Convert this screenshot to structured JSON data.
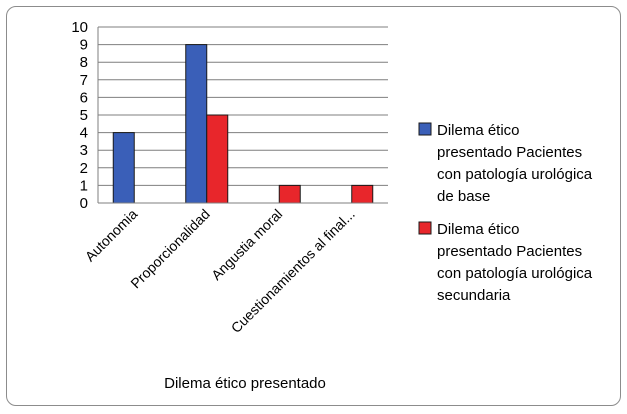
{
  "chart_data": {
    "type": "bar",
    "categories": [
      "Autonomia",
      "Proporcionalidad",
      "Angustia moral",
      "Cuestionamientos al final..."
    ],
    "series": [
      {
        "name": "Dilema ético presentado Pacientes con patología urológica de base",
        "name_lines": [
          "Dilema ético",
          "presentado Pacientes",
          "con patología urológica",
          "de base"
        ],
        "color": "#3a5fb8",
        "values": [
          4,
          9,
          0,
          0
        ]
      },
      {
        "name": "Dilema ético presentado Pacientes con patología urológica secundaria",
        "name_lines": [
          "Dilema ético",
          "presentado Pacientes",
          "con patología urológica",
          "secundaria"
        ],
        "color": "#e8262b",
        "values": [
          0,
          5,
          1,
          1
        ]
      }
    ],
    "yticks": [
      "0",
      "1",
      "2",
      "3",
      "4",
      "5",
      "6",
      "7",
      "8",
      "9",
      "10"
    ],
    "ylim": [
      0,
      10
    ],
    "xlabel": "Dilema ético presentado",
    "grid": true,
    "legend_position": "right"
  }
}
